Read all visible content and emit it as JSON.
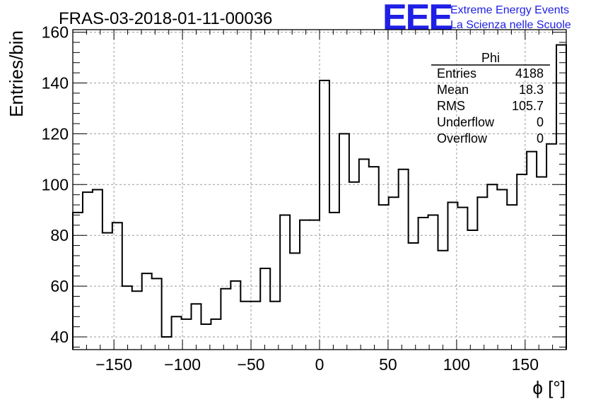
{
  "chart_data": {
    "type": "histogram",
    "title": "FRAS-03-2018-01-11-00036",
    "xlabel": "ϕ [°]",
    "ylabel": "Entries/bin",
    "xlim": [
      -180,
      180
    ],
    "ylim": [
      35,
      161
    ],
    "xticks": [
      -150,
      -100,
      -50,
      0,
      50,
      100,
      150
    ],
    "yticks": [
      40,
      60,
      80,
      100,
      120,
      140,
      160
    ],
    "grid": true,
    "bin_edges_start": -180,
    "bin_width": 7.2,
    "values": [
      89,
      97,
      98,
      81,
      85,
      60,
      58,
      65,
      63,
      40,
      48,
      47,
      53,
      45,
      47,
      59,
      62,
      54,
      54,
      67,
      54,
      88,
      73,
      86,
      86,
      141,
      89,
      120,
      101,
      110,
      107,
      92,
      95,
      106,
      77,
      87,
      88,
      74,
      93,
      91,
      82,
      95,
      100,
      98,
      92,
      104,
      113,
      103,
      116,
      155
    ],
    "stats": {
      "name": "Phi",
      "rows": [
        {
          "label": "Entries",
          "value": "4188"
        },
        {
          "label": "Mean",
          "value": "18.3"
        },
        {
          "label": "RMS",
          "value": "105.7"
        },
        {
          "label": "Underflow",
          "value": "0"
        },
        {
          "label": "Overflow",
          "value": "0"
        }
      ]
    }
  },
  "logo": {
    "mark": "EEE",
    "line1": "Extreme Energy Events",
    "line2": "La Scienza nelle Scuole",
    "color": "#1f1fe6"
  }
}
